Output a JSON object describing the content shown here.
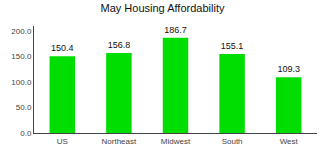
{
  "chart_data": {
    "type": "bar",
    "title": "May Housing Affordability",
    "categories": [
      "US",
      "Northeast",
      "Midwest",
      "South",
      "West"
    ],
    "values": [
      150.4,
      156.8,
      186.7,
      155.1,
      109.3
    ],
    "color": "#00DD00",
    "ylim": [
      0,
      210
    ],
    "yticks": [
      {
        "value": 0,
        "label": "0.0"
      },
      {
        "value": 50,
        "label": "50.0"
      },
      {
        "value": 100,
        "label": "100.0"
      },
      {
        "value": 150,
        "label": "150.0"
      },
      {
        "value": 200,
        "label": "200.0"
      }
    ],
    "grid": false,
    "data_labels": true
  }
}
